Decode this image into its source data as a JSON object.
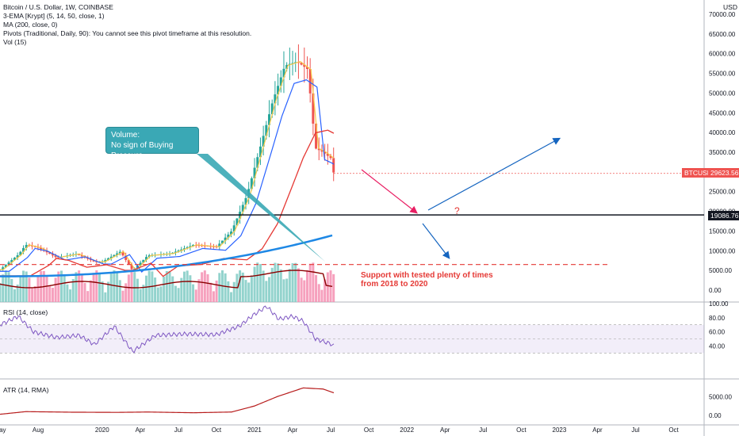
{
  "header": {
    "symbol_line": "Bitcoin / U.S. Dollar, 1W, COINBASE",
    "ema_line": "3-EMA [Krypt] (5, 14, 50, close, 1)",
    "ma_line": "MA (200, close, 0)",
    "pivots_line": "Pivots (Traditional, Daily, 90): You cannot see this pivot timeframe at this resolution.",
    "vol_line": "Vol (15)"
  },
  "currency": "USD",
  "panels": {
    "rsi_title": "RSI (14, close)",
    "atr_title": "ATR (14, RMA)"
  },
  "annotations": {
    "volume_note_line1": "Volume:",
    "volume_note_line2": "No sign of Buying Pressure",
    "support_line1": "Support with tested plenty of times",
    "support_line2": "from 2018 to 2020",
    "question_mark": "?"
  },
  "price_tag": {
    "label": "BTCUSD",
    "value": "29623.56"
  },
  "level_tag": {
    "value": "19086.76"
  },
  "colors": {
    "up": "#26a69a",
    "down": "#ef5350",
    "ema_fast": "#f7c948",
    "ema_mid": "#2962ff",
    "ema_slow": "#e53935",
    "ma200": "#1e88e5",
    "vol_ma": "#8b0000",
    "rsi": "#7e57c2",
    "atr": "#b71c1c",
    "note": "#3aa8b5",
    "arrow_red": "#e91e63",
    "arrow_blue": "#1565c0"
  },
  "chart_data": {
    "type": "candlestick",
    "price_axis": {
      "ticks": [
        "70000.00",
        "65000.00",
        "60000.00",
        "55000.00",
        "50000.00",
        "45000.00",
        "40000.00",
        "35000.00",
        "30000.00",
        "25000.00",
        "20000.00",
        "15000.00",
        "10000.00",
        "5000.00",
        "0.00"
      ],
      "ylim": [
        -1000,
        72000
      ]
    },
    "time_axis": [
      "May",
      "Aug",
      "2020",
      "Apr",
      "Jul",
      "Oct",
      "2021",
      "Apr",
      "Jul",
      "Oct",
      "2022",
      "Apr",
      "Jul",
      "Oct",
      "2023",
      "Apr",
      "Jul",
      "Oct"
    ],
    "price_path": [
      [
        2019.33,
        5200
      ],
      [
        2019.45,
        9000
      ],
      [
        2019.5,
        11500
      ],
      [
        2019.58,
        10800
      ],
      [
        2019.7,
        8300
      ],
      [
        2019.83,
        9200
      ],
      [
        2019.95,
        7200
      ],
      [
        2020.0,
        7200
      ],
      [
        2020.12,
        9800
      ],
      [
        2020.2,
        5000
      ],
      [
        2020.3,
        8800
      ],
      [
        2020.45,
        9300
      ],
      [
        2020.6,
        11500
      ],
      [
        2020.75,
        11000
      ],
      [
        2020.85,
        15000
      ],
      [
        2020.95,
        24000
      ],
      [
        2021.05,
        38000
      ],
      [
        2021.12,
        48000
      ],
      [
        2021.2,
        57000
      ],
      [
        2021.28,
        58000
      ],
      [
        2021.35,
        56000
      ],
      [
        2021.4,
        36000
      ],
      [
        2021.45,
        35000
      ],
      [
        2021.5,
        33500
      ],
      [
        2021.52,
        29623
      ]
    ],
    "support_level": 19086.76,
    "dashed_support": 6500,
    "rsi": {
      "ticks": [
        "100.00",
        "80.00",
        "60.00",
        "40.00"
      ],
      "values": [
        [
          2019.33,
          70
        ],
        [
          2019.45,
          82
        ],
        [
          2019.55,
          60
        ],
        [
          2019.7,
          52
        ],
        [
          2019.85,
          55
        ],
        [
          2019.95,
          42
        ],
        [
          2020.08,
          68
        ],
        [
          2020.2,
          32
        ],
        [
          2020.35,
          55
        ],
        [
          2020.55,
          57
        ],
        [
          2020.75,
          56
        ],
        [
          2020.9,
          68
        ],
        [
          2021.0,
          85
        ],
        [
          2021.08,
          96
        ],
        [
          2021.16,
          78
        ],
        [
          2021.25,
          82
        ],
        [
          2021.32,
          75
        ],
        [
          2021.4,
          50
        ],
        [
          2021.5,
          43
        ],
        [
          2021.52,
          40
        ]
      ]
    },
    "atr": {
      "ticks": [
        "5000.00",
        "0.00"
      ],
      "values": [
        [
          2019.33,
          300
        ],
        [
          2019.5,
          1000
        ],
        [
          2019.8,
          850
        ],
        [
          2020.1,
          800
        ],
        [
          2020.3,
          900
        ],
        [
          2020.6,
          700
        ],
        [
          2020.85,
          900
        ],
        [
          2021.0,
          2500
        ],
        [
          2021.15,
          5000
        ],
        [
          2021.32,
          7300
        ],
        [
          2021.45,
          7000
        ],
        [
          2021.52,
          6000
        ]
      ]
    }
  }
}
